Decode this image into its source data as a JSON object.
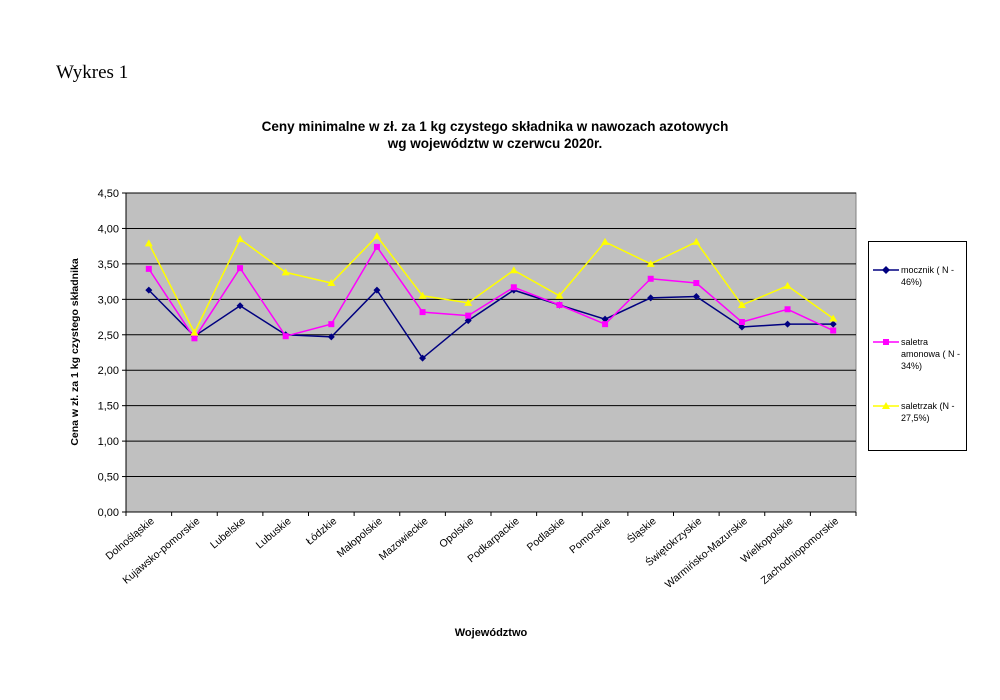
{
  "page": {
    "title": "Wykres 1"
  },
  "colors": {
    "plot_background": "#c0c0c0",
    "mocznik": "#000080",
    "saletra": "#ff00ff",
    "saletrzak": "#ffff00"
  },
  "chart_data": {
    "type": "line",
    "title": [
      "Ceny minimalne  w zł. za 1 kg czystego składnika w nawozach azotowych",
      "wg województw w czerwcu 2020r."
    ],
    "xlabel": "Województwo",
    "ylabel": "Cena w zł. za 1 kg czystego składnika",
    "ylim": [
      0,
      4.5
    ],
    "yticks": [
      "0,00",
      "0,50",
      "1,00",
      "1,50",
      "2,00",
      "2,50",
      "3,00",
      "3,50",
      "4,00",
      "4,50"
    ],
    "grid": "horizontal",
    "legend_position": "right",
    "categories": [
      "Dolnośląskie",
      "Kujawsko-pomorskie",
      "Lubelske",
      "Lubuskie",
      "Łódzkie",
      "Małopolskie",
      "Mazowieckie",
      "Opolskie",
      "Podkarpackie",
      "Podlaskie",
      "Pomorskie",
      "Śląskie",
      "Świętokrzyskie",
      "Warmińsko-Mazurskie",
      "Wielkopolskie",
      "Zachodniopomorskie"
    ],
    "series": [
      {
        "name": "mocznik ( N - 46%)",
        "marker": "diamond",
        "color_key": "mocznik",
        "values": [
          3.13,
          2.48,
          2.91,
          2.5,
          2.47,
          3.13,
          2.17,
          2.7,
          3.13,
          2.92,
          2.72,
          3.02,
          3.04,
          2.61,
          2.65,
          2.65
        ]
      },
      {
        "name": "saletra amonowa ( N - 34%)",
        "marker": "square",
        "color_key": "saletra",
        "values": [
          3.43,
          2.45,
          3.44,
          2.48,
          2.65,
          3.74,
          2.82,
          2.77,
          3.17,
          2.92,
          2.65,
          3.29,
          3.23,
          2.68,
          2.86,
          2.56
        ]
      },
      {
        "name": "saletrzak (N - 27,5%)",
        "marker": "triangle",
        "color_key": "saletrzak",
        "values": [
          3.79,
          2.53,
          3.85,
          3.38,
          3.23,
          3.89,
          3.05,
          2.95,
          3.41,
          3.05,
          3.81,
          3.5,
          3.81,
          2.92,
          3.19,
          2.73
        ]
      }
    ]
  }
}
